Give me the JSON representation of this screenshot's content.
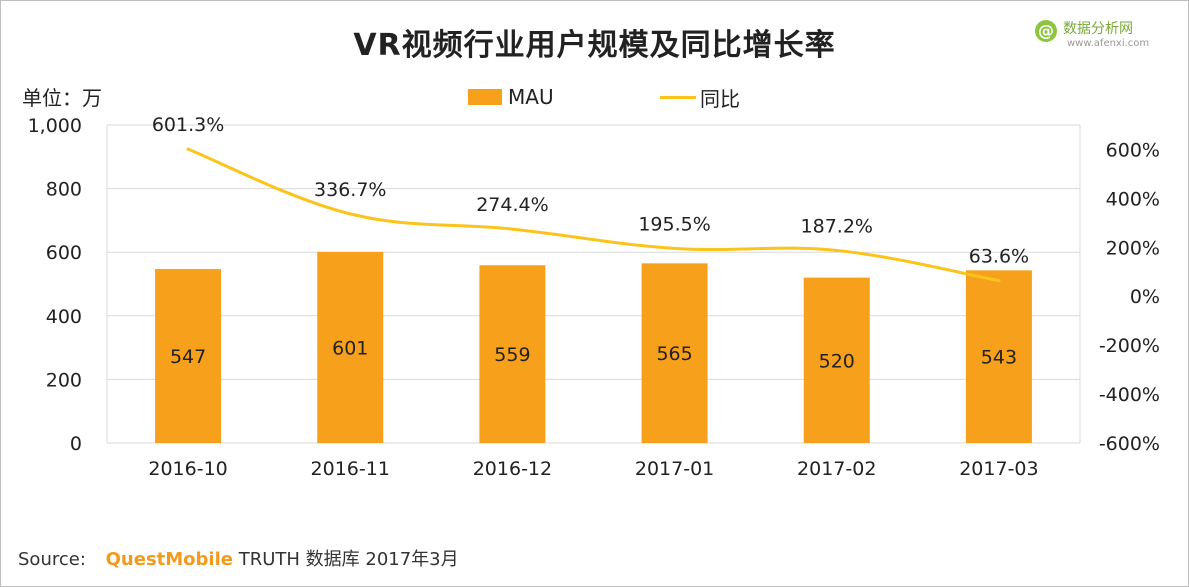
{
  "title": "VR视频行业用户规模及同比增长率",
  "unit_label": "单位：万",
  "logo": {
    "mark": "@",
    "text": "数据分析网",
    "url": "www.afenxi.com"
  },
  "source": {
    "prefix": "Source:",
    "brand": "QuestMobile",
    "suffix": "TRUTH 数据库 2017年3月"
  },
  "colors": {
    "bar": "#f7a01b",
    "line": "#fbc41d",
    "grid": "#d9d9d9"
  },
  "chart_data": {
    "type": "bar",
    "categories": [
      "2016-10",
      "2016-11",
      "2016-12",
      "2017-01",
      "2017-02",
      "2017-03"
    ],
    "series": [
      {
        "name": "MAU",
        "type": "bar",
        "axis": "left",
        "values": [
          547,
          601,
          559,
          565,
          520,
          543
        ],
        "labels": [
          "547",
          "601",
          "559",
          "565",
          "520",
          "543"
        ]
      },
      {
        "name": "同比",
        "type": "line",
        "axis": "right",
        "values": [
          601.3,
          336.7,
          274.4,
          195.5,
          187.2,
          63.6
        ],
        "labels": [
          "601.3%",
          "336.7%",
          "274.4%",
          "195.5%",
          "187.2%",
          "63.6%"
        ]
      }
    ],
    "left_axis": {
      "ylim": [
        0,
        1000
      ],
      "ticks": [
        0,
        200,
        400,
        600,
        800,
        1000
      ],
      "tick_labels": [
        "0",
        "200",
        "400",
        "600",
        "800",
        "1,000"
      ]
    },
    "right_axis": {
      "ylim": [
        -600,
        700
      ],
      "ticks": [
        -600,
        -400,
        -200,
        0,
        200,
        400,
        600
      ],
      "tick_labels": [
        "-600%",
        "-400%",
        "-200%",
        "0%",
        "200%",
        "400%",
        "600%"
      ]
    },
    "grid": true,
    "legend_position": "top-center"
  }
}
